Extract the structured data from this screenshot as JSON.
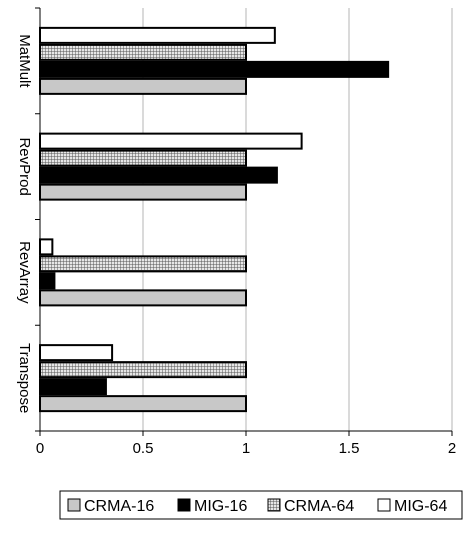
{
  "chart_data": {
    "type": "bar",
    "orientation": "horizontal",
    "title": "",
    "xlabel": "",
    "ylabel": "",
    "xlim": [
      0,
      2
    ],
    "x_ticks": [
      "0",
      "0.5",
      "1",
      "1.5",
      "2"
    ],
    "grid": "vertical",
    "legend_position": "bottom",
    "categories": [
      "MatMult",
      "RevProd",
      "RevArray",
      "Transpose"
    ],
    "series": [
      {
        "name": "CRMA-16",
        "values": [
          1.0,
          1.0,
          1.0,
          1.0
        ],
        "fill": "#c8c8c8",
        "pattern": "solid"
      },
      {
        "name": "MIG-16",
        "values": [
          1.69,
          1.15,
          0.07,
          0.32
        ],
        "fill": "#000000",
        "pattern": "solid"
      },
      {
        "name": "CRMA-64",
        "values": [
          1.0,
          1.0,
          1.0,
          1.0
        ],
        "fill": "#9a9a9a",
        "pattern": "grid"
      },
      {
        "name": "MIG-64",
        "values": [
          1.14,
          1.27,
          0.06,
          0.35
        ],
        "fill": "#ffffff",
        "pattern": "solid"
      }
    ]
  }
}
